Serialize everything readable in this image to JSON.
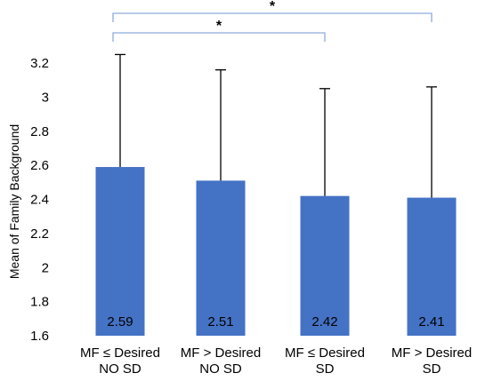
{
  "chart_data": {
    "type": "bar",
    "title": "",
    "xlabel": "",
    "ylabel": "Mean of Family Background",
    "ylim": [
      1.6,
      3.2
    ],
    "yticks": [
      "1.6",
      "1.8",
      "2",
      "2.2",
      "2.4",
      "2.6",
      "2.8",
      "3",
      "3.2"
    ],
    "grid": false,
    "categories": [
      [
        "MF ≤ Desired",
        "NO SD"
      ],
      [
        "MF > Desired",
        "NO SD"
      ],
      [
        "MF ≤ Desired",
        "SD"
      ],
      [
        "MF > Desired",
        "SD"
      ]
    ],
    "values": [
      2.59,
      2.51,
      2.42,
      2.41
    ],
    "data_labels": [
      "2.59",
      "2.51",
      "2.42",
      "2.41"
    ],
    "error_upper": [
      3.25,
      3.16,
      3.05,
      3.06
    ],
    "bar_color": "#4472C4",
    "bracket_color": "#8faadc",
    "significance": [
      {
        "from": 0,
        "to": 2,
        "label": "*"
      },
      {
        "from": 0,
        "to": 3,
        "label": "*"
      }
    ]
  }
}
